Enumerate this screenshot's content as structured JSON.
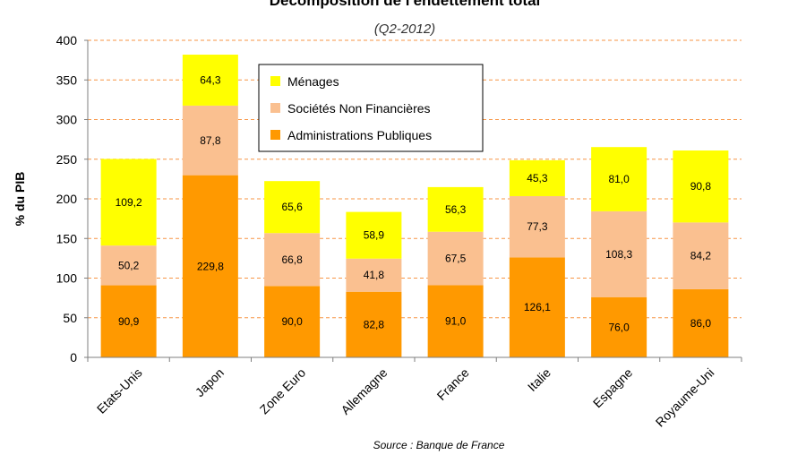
{
  "chart_data": {
    "type": "bar",
    "stacked": true,
    "title": "Décomposition de l'endettement total",
    "subtitle": "(Q2-2012)",
    "ylabel": "% du PIB",
    "xlabel": "",
    "ylim": [
      0,
      400
    ],
    "yticks": [
      0,
      50,
      100,
      150,
      200,
      250,
      300,
      350,
      400
    ],
    "grid": true,
    "legend_position": "top-center",
    "source": "Source : Banque de France",
    "categories": [
      "Etats-Unis",
      "Japon",
      "Zone Euro",
      "Allemagne",
      "France",
      "Italie",
      "Espagne",
      "Royaume-Uni"
    ],
    "series": [
      {
        "name": "Administrations Publiques",
        "color": "#FF9900",
        "values": [
          90.9,
          229.8,
          90.0,
          82.8,
          91.0,
          126.1,
          76.0,
          86.0
        ],
        "labels": [
          "90,9",
          "229,8",
          "90,0",
          "82,8",
          "91,0",
          "126,1",
          "76,0",
          "86,0"
        ]
      },
      {
        "name": "Sociétés Non Financières",
        "color": "#FAC090",
        "values": [
          50.2,
          87.8,
          66.8,
          41.8,
          67.5,
          77.3,
          108.3,
          84.2
        ],
        "labels": [
          "50,2",
          "87,8",
          "66,8",
          "41,8",
          "67,5",
          "77,3",
          "108,3",
          "84,2"
        ]
      },
      {
        "name": "Ménages",
        "color": "#FFFF00",
        "values": [
          109.2,
          64.3,
          65.6,
          58.9,
          56.3,
          45.3,
          81.0,
          90.8
        ],
        "labels": [
          "109,2",
          "64,3",
          "65,6",
          "58,9",
          "56,3",
          "45,3",
          "81,0",
          "90,8"
        ]
      }
    ],
    "legend_order": [
      "Ménages",
      "Sociétés Non Financières",
      "Administrations Publiques"
    ],
    "gridline_color": "#F79646",
    "axis_color": "#7F7F7F"
  }
}
